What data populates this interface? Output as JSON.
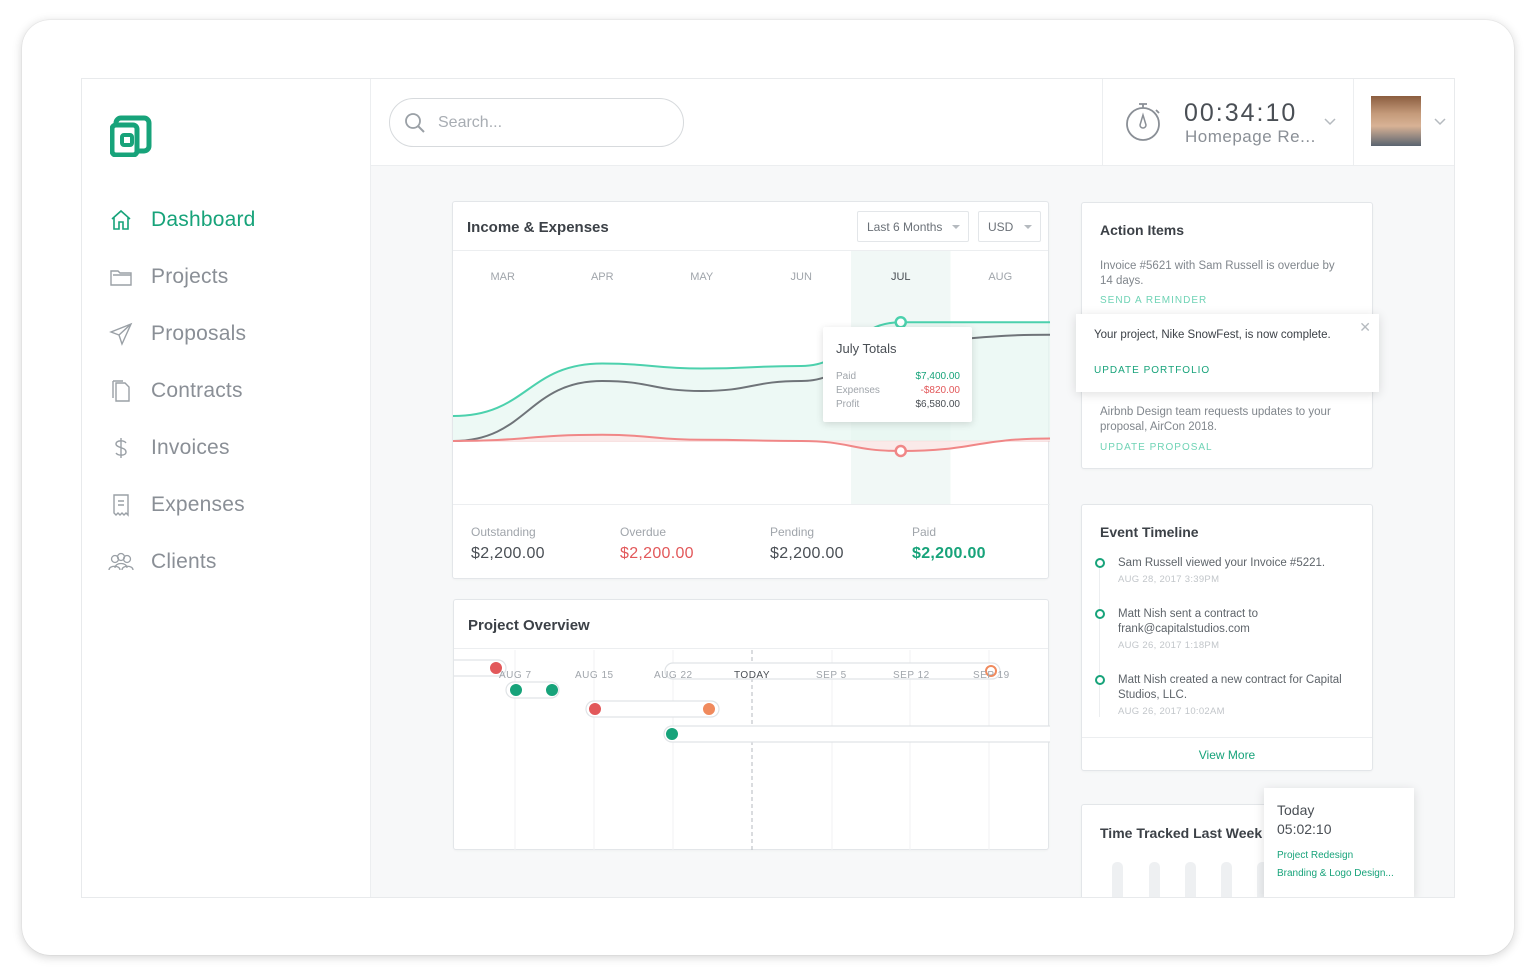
{
  "sidebar": {
    "items": [
      {
        "label": "Dashboard",
        "icon": "home-icon",
        "active": true
      },
      {
        "label": "Projects",
        "icon": "folder-icon"
      },
      {
        "label": "Proposals",
        "icon": "paper-plane-icon"
      },
      {
        "label": "Contracts",
        "icon": "document-icon"
      },
      {
        "label": "Invoices",
        "icon": "dollar-icon"
      },
      {
        "label": "Expenses",
        "icon": "receipt-icon"
      },
      {
        "label": "Clients",
        "icon": "users-icon"
      }
    ]
  },
  "topbar": {
    "search_placeholder": "Search...",
    "timer_time": "00:34:10",
    "timer_project": "Homepage Re..."
  },
  "income": {
    "title": "Income & Expenses",
    "range": "Last 6 Months",
    "currency": "USD",
    "tooltip": {
      "title": "July Totals",
      "paid_label": "Paid",
      "paid": "$7,400.00",
      "expenses_label": "Expenses",
      "expenses": "-$820.00",
      "profit_label": "Profit",
      "profit": "$6,580.00"
    },
    "stats": [
      {
        "label": "Outstanding",
        "value": "$2,200.00",
        "color": "#4a4f55"
      },
      {
        "label": "Overdue",
        "value": "$2,200.00",
        "color": "#e2585a"
      },
      {
        "label": "Pending",
        "value": "$2,200.00",
        "color": "#4a4f55"
      },
      {
        "label": "Paid",
        "value": "$2,200.00",
        "color": "#17a37a"
      }
    ]
  },
  "chart_data": {
    "type": "line",
    "categories": [
      "MAR",
      "APR",
      "MAY",
      "JUN",
      "JUL",
      "AUG"
    ],
    "highlight": "JUL",
    "series": [
      {
        "name": "Paid",
        "color": "#4cd1ad",
        "values": [
          0.2,
          0.62,
          0.58,
          0.6,
          0.95,
          0.95
        ]
      },
      {
        "name": "Profit",
        "color": "#6f7479",
        "values": [
          0.0,
          0.48,
          0.4,
          0.48,
          0.8,
          0.85
        ]
      },
      {
        "name": "Expenses",
        "color": "#f08787",
        "values": [
          0.0,
          0.05,
          0.01,
          0.0,
          -0.08,
          0.02
        ]
      }
    ]
  },
  "overview": {
    "title": "Project Overview",
    "dates": [
      "AUG 7",
      "AUG 15",
      "AUG 22",
      "TODAY",
      "SEP 5",
      "SEP 12",
      "SEP 19"
    ]
  },
  "actions": {
    "title": "Action Items",
    "item1": "Invoice #5621 with Sam Russell is overdue by 14 days.",
    "item1_link": "SEND A REMINDER",
    "popup_text": "Your project, Nike SnowFest, is now complete.",
    "popup_link": "UPDATE PORTFOLIO",
    "item3": "Airbnb Design team requests updates to your proposal, AirCon 2018.",
    "item3_link": "UPDATE PROPOSAL"
  },
  "timeline": {
    "title": "Event Timeline",
    "events": [
      {
        "text": "Sam Russell viewed your Invoice #5221.",
        "date": "AUG 28, 2017 3:39PM"
      },
      {
        "text": "Matt Nish sent a contract to frank@capitalstudios.com",
        "date": "AUG 26, 2017 1:18PM"
      },
      {
        "text": "Matt Nish created a new contract for Capital Studios, LLC.",
        "date": "AUG 26, 2017 10:02AM"
      }
    ],
    "view_more": "View More"
  },
  "time_tracked": {
    "title": "Time Tracked Last Week",
    "popup_day": "Today",
    "popup_time": "05:02:10",
    "popup_p1": "Project Redesign",
    "popup_p2": "Branding & Logo Design..."
  }
}
